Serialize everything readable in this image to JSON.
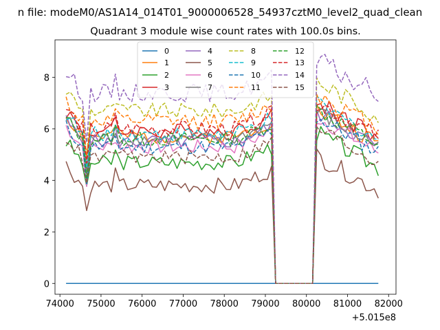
{
  "chart_data": {
    "type": "line",
    "suptitle": "n file: modeM0/AS1A14_014T01_9000006528_54937cztM0_level2_quad_clean",
    "title": "Quadrant 3 module wise count rates with 100.0s bins.",
    "xlabel": "",
    "ylabel": "",
    "x_offset_label": "+5.015e8",
    "x_offset": 501500000,
    "xlim": [
      73880,
      82180
    ],
    "ylim": [
      -0.42,
      9.45
    ],
    "xticks": [
      74000,
      75000,
      76000,
      77000,
      78000,
      79000,
      80000,
      81000,
      82000
    ],
    "xtick_labels": [
      "74000",
      "75000",
      "76000",
      "77000",
      "78000",
      "79000",
      "80000",
      "81000",
      "82000"
    ],
    "yticks": [
      0,
      2,
      4,
      6,
      8
    ],
    "ytick_labels": [
      "0",
      "2",
      "4",
      "6",
      "8"
    ],
    "legend_location": "upper center",
    "legend_columns": 4,
    "bin_seconds": 100.0,
    "x_start": 74150,
    "x_step": 100,
    "x_end": 81750,
    "gap_start": 79200,
    "gap_end": 80200,
    "series": [
      {
        "name": "0",
        "color": "#1f77b4",
        "dashed": false,
        "base": 0.0,
        "amp": 0.0,
        "dip": 0.0,
        "post": 0.0,
        "seed": 1
      },
      {
        "name": "1",
        "color": "#ff7f0e",
        "dashed": false,
        "base": 5.7,
        "amp": 0.28,
        "dip": 1.4,
        "post": 5.9,
        "seed": 2
      },
      {
        "name": "2",
        "color": "#2ca02c",
        "dashed": false,
        "base": 4.7,
        "amp": 0.3,
        "dip": 1.2,
        "post": 5.0,
        "seed": 3
      },
      {
        "name": "3",
        "color": "#d62728",
        "dashed": false,
        "base": 5.9,
        "amp": 0.32,
        "dip": 1.5,
        "post": 6.2,
        "seed": 4
      },
      {
        "name": "4",
        "color": "#9467bd",
        "dashed": false,
        "base": 5.5,
        "amp": 0.28,
        "dip": 1.3,
        "post": 5.8,
        "seed": 5
      },
      {
        "name": "5",
        "color": "#8c564b",
        "dashed": false,
        "base": 3.8,
        "amp": 0.3,
        "dip": 1.0,
        "post": 4.1,
        "seed": 6
      },
      {
        "name": "6",
        "color": "#e377c2",
        "dashed": false,
        "base": 5.3,
        "amp": 0.28,
        "dip": 1.3,
        "post": 5.6,
        "seed": 7
      },
      {
        "name": "7",
        "color": "#7f7f7f",
        "dashed": false,
        "base": 5.6,
        "amp": 0.28,
        "dip": 1.4,
        "post": 5.8,
        "seed": 8
      },
      {
        "name": "8",
        "color": "#bcbd22",
        "dashed": true,
        "base": 6.7,
        "amp": 0.3,
        "dip": 1.6,
        "post": 7.0,
        "seed": 9
      },
      {
        "name": "9",
        "color": "#17becf",
        "dashed": true,
        "base": 5.8,
        "amp": 0.28,
        "dip": 1.4,
        "post": 6.1,
        "seed": 10
      },
      {
        "name": "10",
        "color": "#1f77b4",
        "dashed": true,
        "base": 5.3,
        "amp": 0.28,
        "dip": 1.3,
        "post": 5.6,
        "seed": 11
      },
      {
        "name": "11",
        "color": "#ff7f0e",
        "dashed": true,
        "base": 6.3,
        "amp": 0.3,
        "dip": 1.5,
        "post": 6.5,
        "seed": 12
      },
      {
        "name": "12",
        "color": "#2ca02c",
        "dashed": true,
        "base": 5.6,
        "amp": 0.28,
        "dip": 1.4,
        "post": 5.9,
        "seed": 13
      },
      {
        "name": "13",
        "color": "#d62728",
        "dashed": true,
        "base": 6.0,
        "amp": 0.3,
        "dip": 1.5,
        "post": 6.2,
        "seed": 14
      },
      {
        "name": "14",
        "color": "#9467bd",
        "dashed": true,
        "base": 7.4,
        "amp": 0.35,
        "dip": 1.8,
        "post": 7.8,
        "seed": 15
      },
      {
        "name": "15",
        "color": "#8c564b",
        "dashed": true,
        "base": 4.9,
        "amp": 0.28,
        "dip": 1.2,
        "post": 5.2,
        "seed": 16
      }
    ]
  }
}
